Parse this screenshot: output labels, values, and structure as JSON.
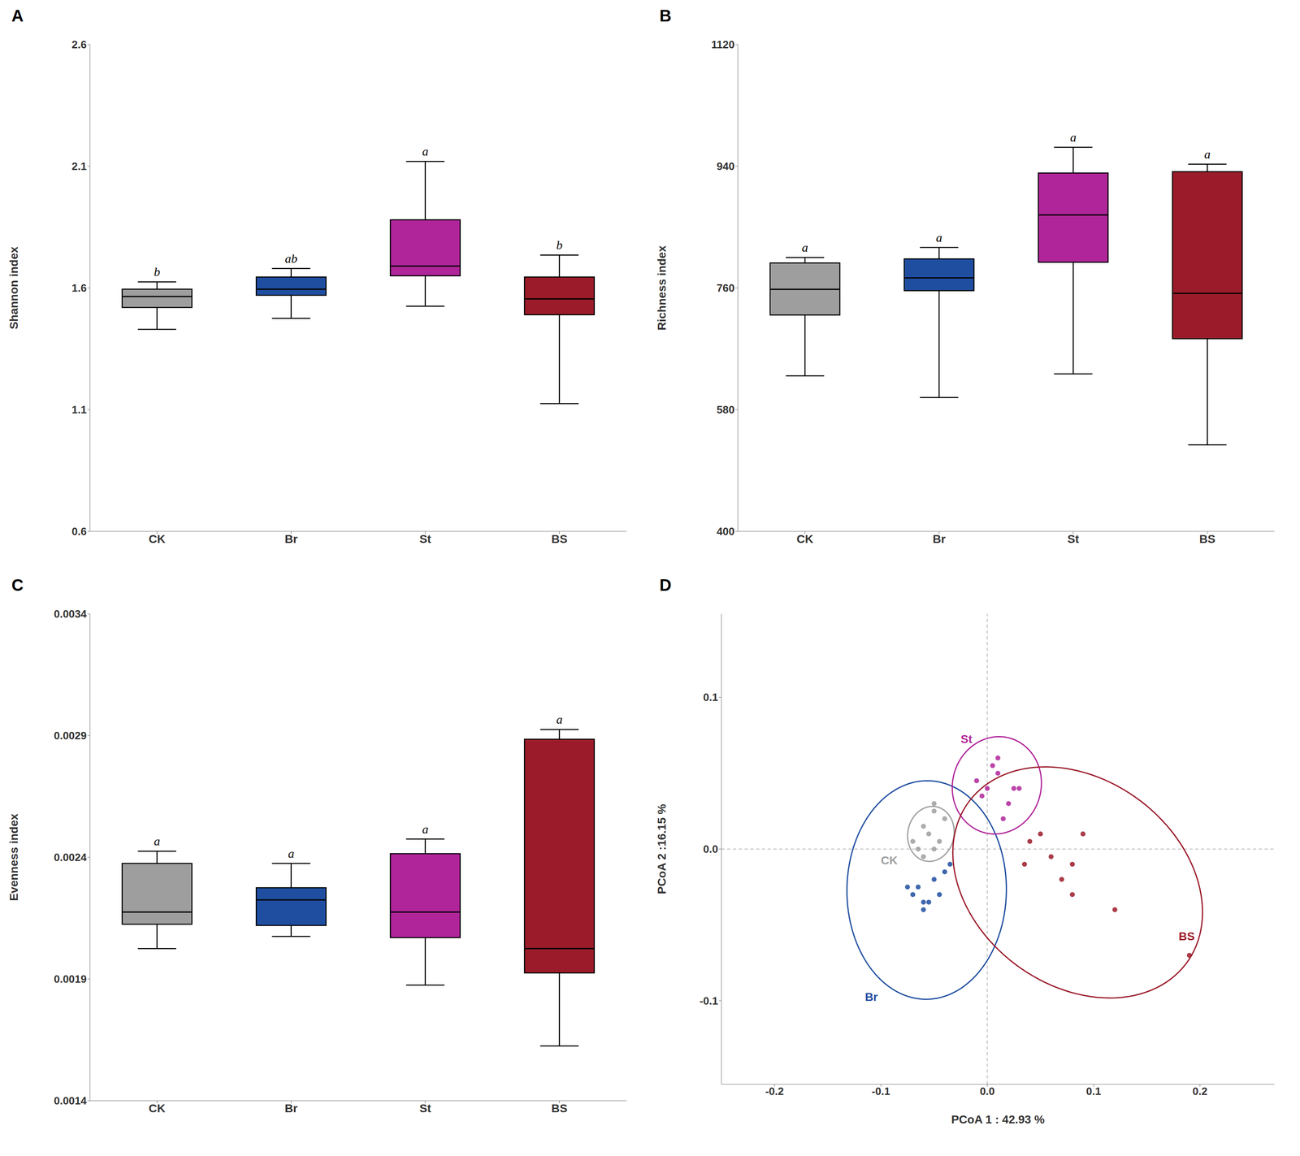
{
  "chart_data": [
    {
      "type": "box",
      "title": "A",
      "ylabel": "Shannon index",
      "ylim": [
        0.6,
        2.6
      ],
      "yticks": [
        0.6,
        1.1,
        1.6,
        2.1,
        2.6
      ],
      "categories": [
        "CK",
        "Br",
        "St",
        "BS"
      ],
      "colors": [
        "#9E9E9E",
        "#1F4EA0",
        "#B0259A",
        "#9B1B2A"
      ],
      "boxes": [
        {
          "q1": 1.52,
          "median": 1.565,
          "q3": 1.595,
          "whislo": 1.43,
          "whishi": 1.625
        },
        {
          "q1": 1.57,
          "median": 1.595,
          "q3": 1.645,
          "whislo": 1.475,
          "whishi": 1.68
        },
        {
          "q1": 1.65,
          "median": 1.69,
          "q3": 1.88,
          "whislo": 1.525,
          "whishi": 2.12
        },
        {
          "q1": 1.49,
          "median": 1.555,
          "q3": 1.645,
          "whislo": 1.125,
          "whishi": 1.735
        }
      ],
      "sig_labels": [
        "b",
        "ab",
        "a",
        "b"
      ]
    },
    {
      "type": "box",
      "title": "B",
      "ylabel": "Richness index",
      "ylim": [
        400,
        1120
      ],
      "yticks": [
        400,
        580,
        760,
        940,
        1120
      ],
      "categories": [
        "CK",
        "Br",
        "St",
        "BS"
      ],
      "colors": [
        "#9E9E9E",
        "#1F4EA0",
        "#B0259A",
        "#9B1B2A"
      ],
      "boxes": [
        {
          "q1": 720,
          "median": 758,
          "q3": 797,
          "whislo": 630,
          "whishi": 805
        },
        {
          "q1": 756,
          "median": 775,
          "q3": 803,
          "whislo": 598,
          "whishi": 820
        },
        {
          "q1": 798,
          "median": 868,
          "q3": 930,
          "whislo": 633,
          "whishi": 968
        },
        {
          "q1": 685,
          "median": 752,
          "q3": 932,
          "whislo": 528,
          "whishi": 943
        }
      ],
      "sig_labels": [
        "a",
        "a",
        "a",
        "a"
      ]
    },
    {
      "type": "box",
      "title": "C",
      "ylabel": "Evenness index",
      "ylim": [
        0.0014,
        0.0034
      ],
      "yticks": [
        0.0014,
        0.0019,
        0.0024,
        0.0029,
        0.0034
      ],
      "categories": [
        "CK",
        "Br",
        "St",
        "BS"
      ],
      "colors": [
        "#9E9E9E",
        "#1F4EA0",
        "#B0259A",
        "#9B1B2A"
      ],
      "boxes": [
        {
          "q1": 0.002125,
          "median": 0.002175,
          "q3": 0.002375,
          "whislo": 0.002025,
          "whishi": 0.002425
        },
        {
          "q1": 0.00212,
          "median": 0.002225,
          "q3": 0.002275,
          "whislo": 0.002075,
          "whishi": 0.002375
        },
        {
          "q1": 0.00207,
          "median": 0.002175,
          "q3": 0.002415,
          "whislo": 0.001875,
          "whishi": 0.002475
        },
        {
          "q1": 0.001925,
          "median": 0.002025,
          "q3": 0.002885,
          "whislo": 0.001625,
          "whishi": 0.002925
        }
      ],
      "sig_labels": [
        "a",
        "a",
        "a",
        "a"
      ]
    },
    {
      "type": "scatter",
      "title": "D",
      "xlabel": "PCoA 1 : 42.93 %",
      "ylabel": "PCoA 2 :16.15 %",
      "xlim": [
        -0.25,
        0.27
      ],
      "ylim": [
        -0.155,
        0.155
      ],
      "xticks": [
        -0.2,
        -0.1,
        {
          "value": 0,
          "label": "0.0"
        },
        0.1,
        0.2
      ],
      "yticks": [
        -0.1,
        {
          "value": 0,
          "label": "0.0"
        },
        0.1
      ],
      "reference_lines": {
        "x": 0,
        "y": 0
      },
      "series": [
        {
          "color": "#9E9E9E",
          "points": [
            [
              -0.06,
              0.015
            ],
            [
              -0.05,
              0.025
            ],
            [
              -0.07,
              0.005
            ],
            [
              -0.06,
              -0.005
            ],
            [
              -0.05,
              0.0
            ],
            [
              -0.055,
              0.01
            ],
            [
              -0.04,
              0.02
            ],
            [
              -0.065,
              0.0
            ],
            [
              -0.05,
              0.03
            ],
            [
              -0.045,
              0.005
            ]
          ],
          "ellipse": {
            "cx": -0.053,
            "cy": 0.01,
            "rx": 0.022,
            "ry": 0.018,
            "angle": 10
          }
        },
        {
          "color": "#1F4EA0",
          "points": [
            [
              -0.05,
              -0.02
            ],
            [
              -0.07,
              -0.03
            ],
            [
              -0.06,
              -0.04
            ],
            [
              -0.04,
              -0.015
            ],
            [
              -0.065,
              -0.025
            ],
            [
              -0.055,
              -0.035
            ],
            [
              -0.035,
              -0.01
            ],
            [
              -0.045,
              -0.03
            ],
            [
              -0.075,
              -0.025
            ],
            [
              -0.06,
              -0.035
            ]
          ],
          "ellipse": {
            "cx": -0.057,
            "cy": -0.027,
            "rx": 0.075,
            "ry": 0.072,
            "angle": 5
          }
        },
        {
          "color": "#B0259A",
          "points": [
            [
              0.0,
              0.04
            ],
            [
              0.01,
              0.06
            ],
            [
              -0.01,
              0.045
            ],
            [
              0.02,
              0.03
            ],
            [
              0.005,
              0.055
            ],
            [
              0.03,
              0.04
            ],
            [
              0.015,
              0.02
            ],
            [
              -0.005,
              0.035
            ],
            [
              0.025,
              0.04
            ],
            [
              0.01,
              0.05
            ]
          ],
          "ellipse": {
            "cx": 0.009,
            "cy": 0.042,
            "rx": 0.042,
            "ry": 0.032,
            "angle": 5
          }
        },
        {
          "color": "#9B1B2A",
          "points": [
            [
              0.05,
              0.01
            ],
            [
              0.12,
              -0.04
            ],
            [
              0.08,
              -0.01
            ],
            [
              0.07,
              -0.02
            ],
            [
              0.04,
              0.005
            ],
            [
              0.19,
              -0.07
            ],
            [
              0.06,
              -0.005
            ],
            [
              0.09,
              0.01
            ],
            [
              0.035,
              -0.01
            ],
            [
              0.08,
              -0.03
            ]
          ],
          "ellipse": {
            "cx": 0.085,
            "cy": -0.022,
            "rx": 0.12,
            "ry": 0.072,
            "angle": -15
          }
        }
      ],
      "annotations": [
        {
          "text": "St",
          "x": -0.025,
          "y": 0.07,
          "color": "#B0259A"
        },
        {
          "text": "Br",
          "x": -0.115,
          "y": -0.1,
          "color": "#1F4EA0"
        },
        {
          "text": "CK",
          "x": -0.1,
          "y": -0.01,
          "color": "#9E9E9E"
        },
        {
          "text": "BS",
          "x": 0.18,
          "y": -0.06,
          "color": "#9B1B2A"
        }
      ]
    }
  ]
}
